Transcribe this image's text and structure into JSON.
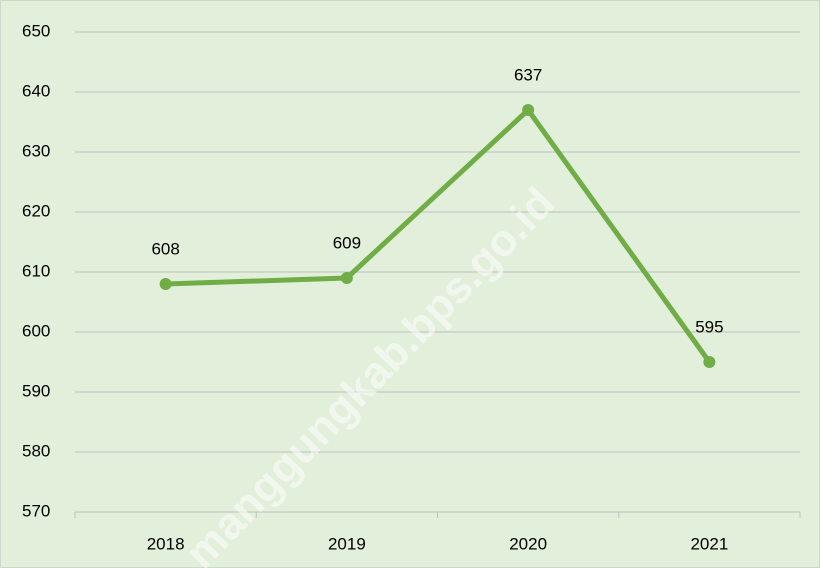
{
  "chart_data": {
    "type": "line",
    "categories": [
      "2018",
      "2019",
      "2020",
      "2021"
    ],
    "series": [
      {
        "name": null,
        "color": "#70ad47",
        "values": [
          608,
          609,
          637,
          595
        ]
      }
    ],
    "ylim": [
      570,
      650
    ],
    "yticks": [
      570,
      580,
      590,
      600,
      610,
      620,
      630,
      640,
      650
    ],
    "grid": true,
    "data_labels": true,
    "watermark": "manggungkab.bps.go.id"
  }
}
